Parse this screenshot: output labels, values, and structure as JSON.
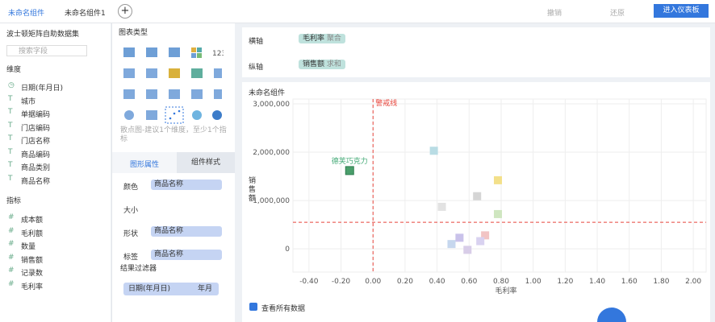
{
  "tabs": [
    "未命名组件",
    "未命名组件1"
  ],
  "toolbar": {
    "undo": "撤销",
    "redo": "还原",
    "enter": "进入仪表板"
  },
  "dataset": {
    "name": "波士顿矩阵自助数据集",
    "search": "搜索字段",
    "dimensions_title": "维度",
    "dimensions": [
      "日期(年月日)",
      "城市",
      "单据编码",
      "门店编码",
      "门店名称",
      "商品编码",
      "商品类别",
      "商品名称"
    ],
    "measures_title": "指标",
    "measures": [
      "成本额",
      "毛利额",
      "数量",
      "销售额",
      "记录数",
      "毛利率"
    ]
  },
  "chart_panel": {
    "title": "图表类型",
    "hint": "散点图-建议1个维度，至少1个指标",
    "tab_attr": "图形属性",
    "tab_style": "组件样式",
    "props": [
      {
        "name": "颜色",
        "field": "商品名称"
      },
      {
        "name": "大小"
      },
      {
        "name": "形状",
        "field": "商品名称"
      },
      {
        "name": "标签",
        "field": "商品名称"
      }
    ],
    "filter_title": "结果过滤器",
    "filter_field": "日期(年月日)",
    "filter_unit": "年月"
  },
  "axes": {
    "x_name": "横轴",
    "x_field": "毛利率",
    "x_agg": "聚合",
    "y_name": "纵轴",
    "y_field": "销售额",
    "y_agg": "求和"
  },
  "component_title": "未命名组件",
  "show_all": "查看所有数据",
  "chart_data": {
    "type": "scatter",
    "x_label": "毛利率",
    "y_label": "销售额",
    "xlim": [
      -0.5,
      2.08
    ],
    "ylim": [
      -480000,
      3100000
    ],
    "xticks": [
      {
        "value": -0.4,
        "label": "-0.40"
      },
      {
        "value": -0.2,
        "label": "-0.20"
      },
      {
        "value": 0,
        "label": "0.00"
      },
      {
        "value": 0.2,
        "label": "0.20"
      },
      {
        "value": 0.4,
        "label": "0.40"
      },
      {
        "value": 0.6,
        "label": "0.60"
      },
      {
        "value": 0.8,
        "label": "0.80"
      },
      {
        "value": 1,
        "label": "1.00"
      },
      {
        "value": 1.2,
        "label": "1.20"
      },
      {
        "value": 1.4,
        "label": "1.40"
      },
      {
        "value": 1.6,
        "label": "1.60"
      },
      {
        "value": 1.8,
        "label": "1.80"
      },
      {
        "value": 2,
        "label": "2.00"
      }
    ],
    "yticks": [
      0,
      {
        "value": 1000000,
        "label": "1,000,000"
      },
      {
        "value": 2000000,
        "label": "2,000,000"
      },
      {
        "value": 3000000,
        "label": "3,000,000"
      }
    ],
    "grid": true,
    "reference_lines": {
      "label": "警戒线",
      "color": "#e8453c",
      "x": 0,
      "y": 550000
    },
    "series": [
      {
        "x": [
          -0.146,
          0.38,
          0.78,
          0.65,
          0.43,
          0.78,
          0.54,
          0.59,
          0.7,
          0.49,
          0.67
        ],
        "values": [
          1620000,
          2030000,
          1420000,
          1090000,
          870000,
          720000,
          230000,
          -20000,
          280000,
          100000,
          160000
        ],
        "labels": [
          "德芙巧克力",
          null,
          null,
          null,
          null,
          null,
          null,
          null,
          null,
          null,
          null
        ],
        "colors": [
          "#4a9e6b",
          "#b9dce4",
          "#f3e08a",
          "#d5d5d5",
          "#e2e2e2",
          "#cfe6c0",
          "#c9c2ea",
          "#d8cde8",
          "#f2c4c4",
          "#c6d7ee",
          "#d9d2f0"
        ]
      }
    ]
  }
}
